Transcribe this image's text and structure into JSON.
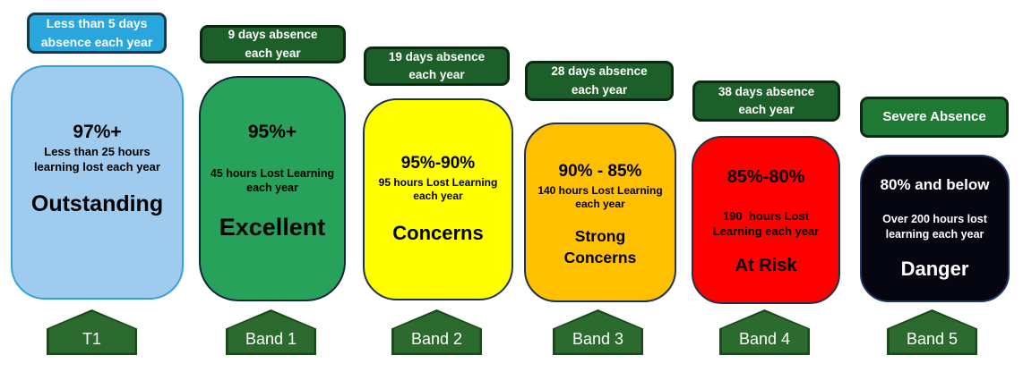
{
  "bands": [
    {
      "header_line1": "Less than 5 days",
      "header_line2": "absence each year",
      "headline": "97%+",
      "detail_line1": "Less than 25 hours",
      "detail_line2": "learning lost each year",
      "status": "Outstanding",
      "arrow_label": "T1",
      "colors": {
        "header_bg": "#2aa6df",
        "header_border": "#14384c",
        "card_bg": "#9ecbee",
        "card_border": "#35a1d8",
        "card_text": "#000000"
      }
    },
    {
      "header_line1": "9 days absence",
      "header_line2": "each year",
      "headline": "95%+",
      "detail_line1": "45 hours Lost Learning",
      "detail_line2": "each year",
      "status": "Excellent",
      "arrow_label": "Band 1",
      "colors": {
        "header_bg": "#1d5f28",
        "header_border": "#0c2a11",
        "card_bg": "#27a25a",
        "card_border": "#15253b",
        "card_text": "#000000"
      }
    },
    {
      "header_line1": "19 days absence",
      "header_line2": "each year",
      "headline": "95%-90%",
      "detail_line1": "95 hours Lost Learning",
      "detail_line2": "each year",
      "status": "Concerns",
      "arrow_label": "Band 2",
      "colors": {
        "header_bg": "#1d5f28",
        "header_border": "#0c2a11",
        "card_bg": "#ffff00",
        "card_border": "#1f3147",
        "card_text": "#000000"
      }
    },
    {
      "header_line1": "28 days absence",
      "header_line2": "each year",
      "headline": "90% - 85%",
      "detail_line1": "140 hours Lost Learning",
      "detail_line2": "each year",
      "status": "Strong Concerns",
      "arrow_label": "Band 3",
      "colors": {
        "header_bg": "#1d5f28",
        "header_border": "#0c2a11",
        "card_bg": "#ffc000",
        "card_border": "#1f3147",
        "card_text": "#000000"
      }
    },
    {
      "header_line1": "38 days absence",
      "header_line2": "each year",
      "headline": "85%-80%",
      "detail_line1": "190  hours Lost",
      "detail_line2": "Learning each year",
      "status": "At Risk",
      "arrow_label": "Band 4",
      "colors": {
        "header_bg": "#1d5f28",
        "header_border": "#0c2a11",
        "card_bg": "#ff0000",
        "card_border": "#1f3147",
        "card_text": "#000000"
      }
    },
    {
      "header_line1": "Severe Absence",
      "headline": "80% and below",
      "detail_line1": "Over 200 hours lost",
      "detail_line2": "learning each year",
      "status": "Danger",
      "arrow_label": "Band 5",
      "colors": {
        "header_bg": "#1e7a32",
        "header_border": "#0c2a11",
        "card_bg": "#060610",
        "card_border": "#1f3864",
        "card_text": "#ffffff"
      }
    }
  ],
  "arrow": {
    "fill": "#2b6b2e",
    "border": "#1c4a1f",
    "text_color": "#ffffff"
  }
}
